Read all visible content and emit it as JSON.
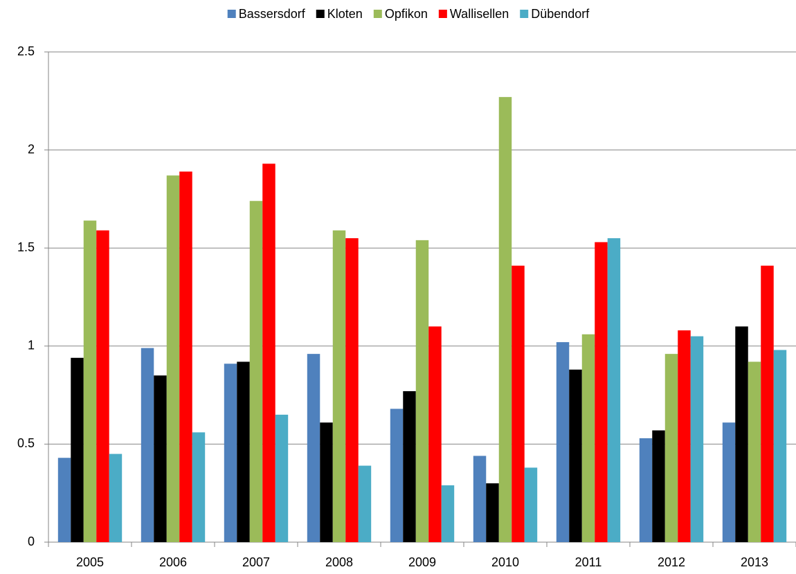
{
  "chart_data": {
    "type": "bar",
    "categories": [
      "2005",
      "2006",
      "2007",
      "2008",
      "2009",
      "2010",
      "2011",
      "2012",
      "2013"
    ],
    "series": [
      {
        "name": "Bassersdorf",
        "color": "#4f81bd",
        "values": [
          0.43,
          0.99,
          0.91,
          0.96,
          0.68,
          0.44,
          1.02,
          0.53,
          0.61
        ]
      },
      {
        "name": "Kloten",
        "color": "#000000",
        "values": [
          0.94,
          0.85,
          0.92,
          0.61,
          0.77,
          0.3,
          0.88,
          0.57,
          1.1
        ]
      },
      {
        "name": "Opfikon",
        "color": "#9bbb59",
        "values": [
          1.64,
          1.87,
          1.74,
          1.59,
          1.54,
          2.27,
          1.06,
          0.96,
          0.92
        ]
      },
      {
        "name": "Wallisellen",
        "color": "#ff0000",
        "values": [
          1.59,
          1.89,
          1.93,
          1.55,
          1.1,
          1.41,
          1.53,
          1.08,
          1.41
        ]
      },
      {
        "name": "Dübendorf",
        "color": "#4bacc6",
        "values": [
          0.45,
          0.56,
          0.65,
          0.39,
          0.29,
          0.38,
          1.55,
          1.05,
          0.98
        ]
      }
    ],
    "ylim": [
      0,
      2.5
    ],
    "yticks": [
      0,
      0.5,
      1,
      1.5,
      2,
      2.5
    ],
    "grid": true,
    "legend": "top"
  }
}
